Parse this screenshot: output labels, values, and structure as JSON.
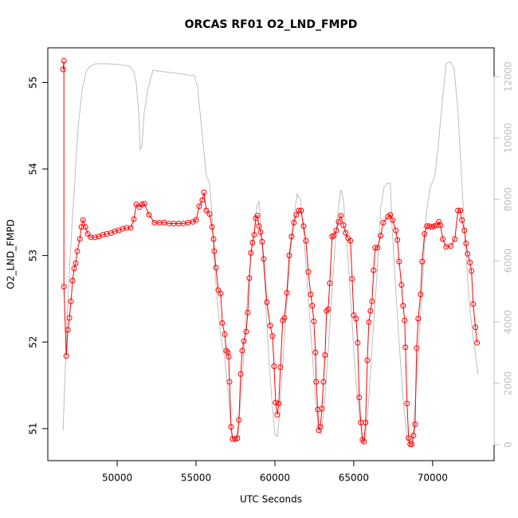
{
  "chart_data": {
    "type": "line",
    "title": "ORCAS RF01 O2_LND_FMPD",
    "x_label": "UTC Seconds",
    "y_label": "O2_LND_FMPD",
    "xlim": [
      45600,
      73900
    ],
    "xticks": [
      50000,
      55000,
      60000,
      65000,
      70000
    ],
    "ylim": [
      50.63,
      55.4
    ],
    "yticks": [
      51,
      52,
      53,
      54,
      55
    ],
    "y2lim": [
      -520,
      12940
    ],
    "y2ticks": [
      0,
      2000,
      4000,
      6000,
      8000,
      10000,
      12000
    ],
    "y2_color": "#bebebe",
    "series": [
      {
        "color": "#bebebe",
        "axis": "y2",
        "marker": "none",
        "x": [
          46570,
          46820,
          47020,
          47270,
          47520,
          47780,
          48030,
          48280,
          48640,
          49390,
          50150,
          50810,
          51060,
          51210,
          51360,
          51460,
          51570,
          51720,
          51970,
          52270,
          52680,
          53430,
          54190,
          54900,
          55100,
          55300,
          55500,
          55650,
          55860,
          56010,
          56160,
          56360,
          56560,
          56820,
          57070,
          57270,
          57470,
          57720,
          57980,
          58230,
          58480,
          58690,
          58840,
          58990,
          59140,
          59340,
          59590,
          59800,
          60000,
          60150,
          60300,
          60550,
          60760,
          60960,
          61210,
          61410,
          61610,
          61820,
          62070,
          62320,
          62570,
          62780,
          62930,
          63130,
          63380,
          63630,
          63890,
          64090,
          64190,
          64340,
          64590,
          64850,
          65100,
          65350,
          65600,
          65750,
          65960,
          66210,
          66460,
          66710,
          66920,
          67120,
          67320,
          67420,
          67620,
          67880,
          68130,
          68380,
          68580,
          68790,
          69040,
          69340,
          69590,
          69850,
          70150,
          70350,
          70600,
          70860,
          71110,
          71360,
          71610,
          71860,
          72120,
          72370,
          72620,
          72880
        ],
        "values": [
          468,
          4100,
          6180,
          8260,
          10340,
          11580,
          12160,
          12340,
          12420,
          12420,
          12390,
          12340,
          12160,
          11770,
          10860,
          9610,
          9740,
          10860,
          11640,
          12210,
          12180,
          12130,
          12080,
          12030,
          11640,
          10600,
          9560,
          8780,
          8520,
          7530,
          5920,
          4620,
          3580,
          2810,
          1510,
          260,
          80,
          730,
          2550,
          4620,
          6180,
          6960,
          7740,
          7950,
          6960,
          5400,
          3060,
          1510,
          340,
          260,
          990,
          3060,
          4620,
          6180,
          7430,
          8180,
          8000,
          6960,
          5140,
          3320,
          1510,
          470,
          340,
          1250,
          3060,
          5140,
          6960,
          8000,
          8310,
          8000,
          6440,
          4360,
          2290,
          990,
          130,
          260,
          1510,
          3580,
          5400,
          7740,
          8390,
          8520,
          8520,
          7220,
          5400,
          3320,
          1510,
          210,
          50,
          470,
          2550,
          5140,
          7480,
          8390,
          8780,
          9690,
          11120,
          12420,
          12490,
          12290,
          10860,
          8520,
          6180,
          4360,
          3320,
          2290
        ]
      },
      {
        "color": "#ff0000",
        "marker": "circle",
        "x": [
          46570,
          46620,
          46620,
          46770,
          46870,
          46970,
          47070,
          47170,
          47270,
          47370,
          47470,
          47630,
          47730,
          47830,
          47980,
          48130,
          48330,
          48590,
          48840,
          49090,
          49340,
          49600,
          49850,
          50100,
          50350,
          50600,
          50860,
          51060,
          51210,
          51410,
          51570,
          51720,
          52020,
          52370,
          52680,
          52980,
          53280,
          53580,
          53890,
          54190,
          54490,
          54800,
          55000,
          55200,
          55400,
          55500,
          55650,
          55860,
          56010,
          56110,
          56160,
          56260,
          56410,
          56560,
          56670,
          56820,
          56920,
          57020,
          57070,
          57120,
          57220,
          57320,
          57470,
          57620,
          57720,
          57830,
          57930,
          58030,
          58180,
          58280,
          58380,
          58480,
          58580,
          58690,
          58790,
          58890,
          58990,
          59090,
          59190,
          59290,
          59490,
          59700,
          59850,
          59950,
          60050,
          60150,
          60250,
          60350,
          60500,
          60600,
          60760,
          60910,
          61060,
          61210,
          61360,
          61510,
          61660,
          61820,
          61970,
          62120,
          62270,
          62370,
          62470,
          62570,
          62620,
          62720,
          62780,
          62880,
          62980,
          63080,
          63180,
          63280,
          63380,
          63480,
          63630,
          63730,
          63890,
          64040,
          64190,
          64340,
          64490,
          64640,
          64790,
          64900,
          65000,
          65150,
          65250,
          65350,
          65450,
          65550,
          65650,
          65750,
          65860,
          65960,
          66060,
          66160,
          66260,
          66360,
          66510,
          66710,
          66870,
          67170,
          67320,
          67470,
          67670,
          67770,
          67880,
          68030,
          68130,
          68230,
          68280,
          68380,
          68480,
          68580,
          68680,
          68790,
          68890,
          68990,
          69090,
          69240,
          69340,
          69490,
          69640,
          69790,
          69950,
          70100,
          70250,
          70400,
          70500,
          70650,
          70860,
          71160,
          71410,
          71610,
          71760,
          71860,
          72020,
          72120,
          72220,
          72370,
          72470,
          72570,
          72720,
          72820
        ],
        "values": [
          55.15,
          55.25,
          52.64,
          51.84,
          52.14,
          52.28,
          52.47,
          52.71,
          52.85,
          52.91,
          53.05,
          53.19,
          53.33,
          53.41,
          53.33,
          53.25,
          53.21,
          53.21,
          53.22,
          53.24,
          53.25,
          53.26,
          53.28,
          53.29,
          53.31,
          53.32,
          53.32,
          53.42,
          53.59,
          53.56,
          53.59,
          53.6,
          53.47,
          53.38,
          53.38,
          53.38,
          53.37,
          53.37,
          53.37,
          53.37,
          53.38,
          53.39,
          53.41,
          53.57,
          53.64,
          53.73,
          53.52,
          53.48,
          53.33,
          53.19,
          53.05,
          52.86,
          52.6,
          52.56,
          52.22,
          52.09,
          51.9,
          51.88,
          51.83,
          51.54,
          51.02,
          50.88,
          50.88,
          50.89,
          51.1,
          51.63,
          51.9,
          52.01,
          52.12,
          52.34,
          52.74,
          53.03,
          53.15,
          53.24,
          53.43,
          53.46,
          53.34,
          53.27,
          53.16,
          52.96,
          52.46,
          52.19,
          52.07,
          51.72,
          51.3,
          51.16,
          51.29,
          51.71,
          52.25,
          52.28,
          52.57,
          53.0,
          53.22,
          53.38,
          53.47,
          53.52,
          53.52,
          53.34,
          53.17,
          52.81,
          52.55,
          52.42,
          52.24,
          51.88,
          51.54,
          51.22,
          50.98,
          51.02,
          51.23,
          51.54,
          51.85,
          52.36,
          52.38,
          52.68,
          53.22,
          53.23,
          53.29,
          53.39,
          53.46,
          53.35,
          53.26,
          53.2,
          53.17,
          52.73,
          52.31,
          52.27,
          51.99,
          51.36,
          51.07,
          50.87,
          50.85,
          51.07,
          51.79,
          52.23,
          52.36,
          52.47,
          52.83,
          53.09,
          53.09,
          53.23,
          53.38,
          53.45,
          53.47,
          53.41,
          53.29,
          53.18,
          52.93,
          52.66,
          52.42,
          52.25,
          51.94,
          51.29,
          50.89,
          50.82,
          50.82,
          50.92,
          51.05,
          51.93,
          52.27,
          52.55,
          52.93,
          53.25,
          53.34,
          53.34,
          53.33,
          53.34,
          53.35,
          53.39,
          53.35,
          53.19,
          53.1,
          53.11,
          53.19,
          53.52,
          53.52,
          53.41,
          53.29,
          53.14,
          53.02,
          52.92,
          52.82,
          52.44,
          52.17,
          51.99
        ]
      }
    ]
  }
}
